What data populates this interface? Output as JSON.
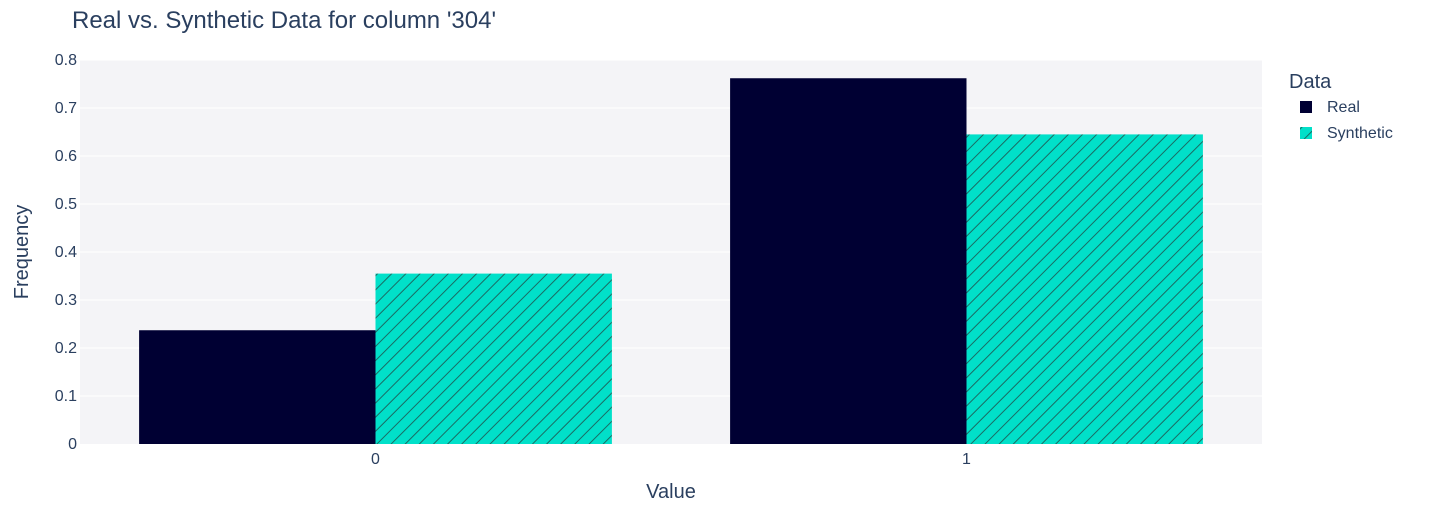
{
  "chart_data": {
    "type": "bar",
    "title": "Real vs. Synthetic Data for column '304'",
    "xlabel": "Value",
    "ylabel": "Frequency",
    "categories": [
      "0",
      "1"
    ],
    "ylim": [
      0,
      0.8
    ],
    "yticks": [
      0,
      0.1,
      0.2,
      0.3,
      0.4,
      0.5,
      0.6,
      0.7,
      0.8
    ],
    "ytick_labels": [
      "0",
      "0.1",
      "0.2",
      "0.3",
      "0.4",
      "0.5",
      "0.6",
      "0.7",
      "0.8"
    ],
    "grid": true,
    "legend": {
      "title": "Data",
      "position": "right"
    },
    "series": [
      {
        "name": "Real",
        "values": [
          0.237,
          0.762
        ],
        "color": "#000033",
        "pattern": "solid"
      },
      {
        "name": "Synthetic",
        "values": [
          0.355,
          0.645
        ],
        "color": "#01e0c9",
        "pattern": "diagonal-hatch"
      }
    ],
    "colors": {
      "plot_background": "#f4f4f7",
      "gridline": "#ffffff",
      "text": "#2a3f5f",
      "hatch": "#1a6b63"
    }
  }
}
